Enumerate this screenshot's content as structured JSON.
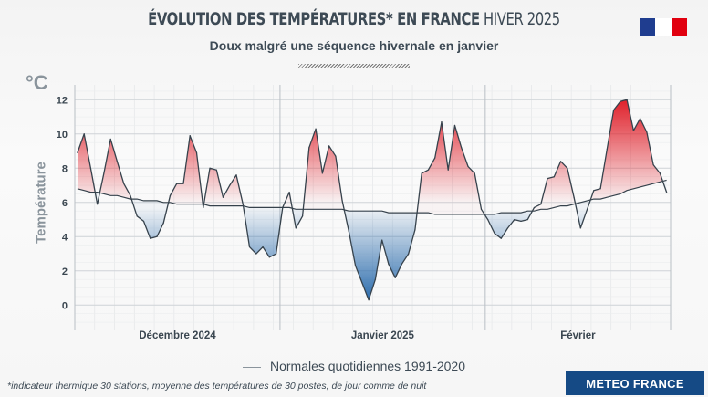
{
  "header": {
    "title_bold": "ÉVOLUTION DES TEMPÉRATURES* EN FRANCE",
    "title_light": "HIVER 2025",
    "subtitle": "Doux malgré une séquence hivernale en janvier",
    "logo": "Republique-Francaise-logo"
  },
  "colors": {
    "warm": "#e0202a",
    "cold": "#2b6cad",
    "line": "#36424c",
    "normal": "#36424c",
    "brand": "#154a85"
  },
  "chart_data": {
    "type": "area",
    "unit": "°C",
    "ylabel": "Température",
    "ylim": [
      -1.5,
      13
    ],
    "yticks": [
      "0",
      "2",
      "4",
      "6",
      "8",
      "10",
      "12"
    ],
    "grid": true,
    "months": [
      "Décembre 2024",
      "Janvier 2025",
      "Février"
    ],
    "month_days": [
      31,
      31,
      28
    ],
    "series": [
      {
        "name": "",
        "values": [
          8.9,
          10.0,
          8.0,
          5.9,
          7.7,
          9.7,
          8.4,
          7.1,
          6.4,
          5.2,
          4.9,
          3.9,
          4.0,
          4.8,
          6.4,
          7.1,
          7.1,
          9.9,
          8.9,
          5.7,
          8.0,
          7.9,
          6.3,
          7.0,
          7.6,
          5.9,
          3.4,
          3.0,
          3.4,
          2.8,
          3.0,
          5.7,
          6.6,
          4.5,
          5.2,
          9.2,
          10.3,
          7.7,
          9.3,
          8.7,
          6.1,
          4.3,
          2.3,
          1.3,
          0.3,
          1.5,
          3.8,
          2.4,
          1.6,
          2.4,
          3.0,
          4.4,
          7.7,
          7.9,
          8.6,
          10.7,
          7.9,
          10.5,
          9.2,
          8.1,
          7.7,
          5.6,
          5.0,
          4.2,
          3.9,
          4.5,
          5.0,
          4.9,
          5.0,
          5.7,
          5.9,
          7.4,
          7.5,
          8.4,
          8.0,
          6.3,
          4.5,
          5.6,
          6.7,
          6.8,
          9.1,
          11.4,
          11.9,
          12.0,
          10.2,
          10.9,
          10.1,
          8.2,
          7.7,
          6.6
        ]
      },
      {
        "name": "Normales quotidiennes 1991-2020",
        "values": [
          6.8,
          6.7,
          6.6,
          6.6,
          6.5,
          6.4,
          6.4,
          6.3,
          6.2,
          6.2,
          6.1,
          6.1,
          6.1,
          6.0,
          6.0,
          5.9,
          5.9,
          5.9,
          5.9,
          5.9,
          5.8,
          5.8,
          5.8,
          5.8,
          5.8,
          5.8,
          5.7,
          5.7,
          5.7,
          5.7,
          5.7,
          5.7,
          5.7,
          5.6,
          5.6,
          5.6,
          5.6,
          5.6,
          5.6,
          5.6,
          5.6,
          5.5,
          5.5,
          5.5,
          5.5,
          5.5,
          5.5,
          5.4,
          5.4,
          5.4,
          5.4,
          5.4,
          5.4,
          5.4,
          5.3,
          5.3,
          5.3,
          5.3,
          5.3,
          5.3,
          5.3,
          5.3,
          5.3,
          5.3,
          5.4,
          5.4,
          5.4,
          5.4,
          5.5,
          5.5,
          5.6,
          5.6,
          5.7,
          5.8,
          5.8,
          5.9,
          6.0,
          6.1,
          6.2,
          6.2,
          6.3,
          6.4,
          6.5,
          6.7,
          6.8,
          6.9,
          7.0,
          7.1,
          7.2,
          7.3
        ]
      }
    ]
  },
  "legend": {
    "normal_label": "Normales quotidiennes 1991-2020"
  },
  "footer": {
    "footnote": "*indicateur thermique 30 stations, moyenne des températures de 30 postes, de jour comme de nuit",
    "brand": "METEO FRANCE"
  }
}
